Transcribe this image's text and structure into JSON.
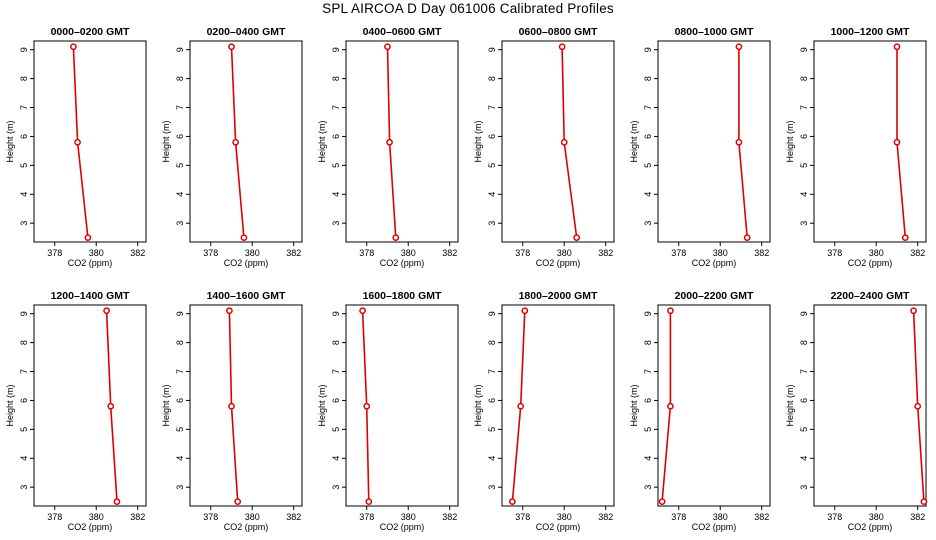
{
  "title": "SPL AIRCOA D  Day 061006  Calibrated Profiles",
  "colors": {
    "series": "#dd0000",
    "axis": "#000000",
    "background": "#ffffff"
  },
  "chart_data": [
    {
      "type": "line",
      "title": "0000–0200 GMT",
      "xlabel": "CO2 (ppm)",
      "ylabel": "Height (m)",
      "xlim": [
        377,
        382.4
      ],
      "ylim": [
        2.35,
        9.3
      ],
      "x_ticks": [
        "378",
        "380",
        "382"
      ],
      "y_ticks": [
        "3",
        "4",
        "5",
        "6",
        "7",
        "8",
        "9"
      ],
      "grid": false,
      "series": [
        {
          "x": [
            378.9,
            379.1,
            379.6
          ],
          "y": [
            9.1,
            5.8,
            2.5
          ]
        }
      ]
    },
    {
      "type": "line",
      "title": "0200–0400 GMT",
      "xlabel": "CO2 (ppm)",
      "ylabel": "Height (m)",
      "xlim": [
        377,
        382.4
      ],
      "ylim": [
        2.35,
        9.3
      ],
      "x_ticks": [
        "378",
        "380",
        "382"
      ],
      "y_ticks": [
        "3",
        "4",
        "5",
        "6",
        "7",
        "8",
        "9"
      ],
      "grid": false,
      "series": [
        {
          "x": [
            379.0,
            379.2,
            379.6
          ],
          "y": [
            9.1,
            5.8,
            2.5
          ]
        }
      ]
    },
    {
      "type": "line",
      "title": "0400–0600 GMT",
      "xlabel": "CO2 (ppm)",
      "ylabel": "Height (m)",
      "xlim": [
        377,
        382.4
      ],
      "ylim": [
        2.35,
        9.3
      ],
      "x_ticks": [
        "378",
        "380",
        "382"
      ],
      "y_ticks": [
        "3",
        "4",
        "5",
        "6",
        "7",
        "8",
        "9"
      ],
      "grid": false,
      "series": [
        {
          "x": [
            379.0,
            379.1,
            379.4
          ],
          "y": [
            9.1,
            5.8,
            2.5
          ]
        }
      ]
    },
    {
      "type": "line",
      "title": "0600–0800 GMT",
      "xlabel": "CO2 (ppm)",
      "ylabel": "Height (m)",
      "xlim": [
        377,
        382.4
      ],
      "ylim": [
        2.35,
        9.3
      ],
      "x_ticks": [
        "378",
        "380",
        "382"
      ],
      "y_ticks": [
        "3",
        "4",
        "5",
        "6",
        "7",
        "8",
        "9"
      ],
      "grid": false,
      "series": [
        {
          "x": [
            379.9,
            380.0,
            380.6
          ],
          "y": [
            9.1,
            5.8,
            2.5
          ]
        }
      ]
    },
    {
      "type": "line",
      "title": "0800–1000 GMT",
      "xlabel": "CO2 (ppm)",
      "ylabel": "Height (m)",
      "xlim": [
        377,
        382.4
      ],
      "ylim": [
        2.35,
        9.3
      ],
      "x_ticks": [
        "378",
        "380",
        "382"
      ],
      "y_ticks": [
        "3",
        "4",
        "5",
        "6",
        "7",
        "8",
        "9"
      ],
      "grid": false,
      "series": [
        {
          "x": [
            380.9,
            380.9,
            381.3
          ],
          "y": [
            9.1,
            5.8,
            2.5
          ]
        }
      ]
    },
    {
      "type": "line",
      "title": "1000–1200 GMT",
      "xlabel": "CO2 (ppm)",
      "ylabel": "Height (m)",
      "xlim": [
        377,
        382.4
      ],
      "ylim": [
        2.35,
        9.3
      ],
      "x_ticks": [
        "378",
        "380",
        "382"
      ],
      "y_ticks": [
        "3",
        "4",
        "5",
        "6",
        "7",
        "8",
        "9"
      ],
      "grid": false,
      "series": [
        {
          "x": [
            381.0,
            381.0,
            381.4
          ],
          "y": [
            9.1,
            5.8,
            2.5
          ]
        }
      ]
    },
    {
      "type": "line",
      "title": "1200–1400 GMT",
      "xlabel": "CO2 (ppm)",
      "ylabel": "Height (m)",
      "xlim": [
        377,
        382.4
      ],
      "ylim": [
        2.35,
        9.3
      ],
      "x_ticks": [
        "378",
        "380",
        "382"
      ],
      "y_ticks": [
        "3",
        "4",
        "5",
        "6",
        "7",
        "8",
        "9"
      ],
      "grid": false,
      "series": [
        {
          "x": [
            380.5,
            380.7,
            381.0
          ],
          "y": [
            9.1,
            5.8,
            2.5
          ]
        }
      ]
    },
    {
      "type": "line",
      "title": "1400–1600 GMT",
      "xlabel": "CO2 (ppm)",
      "ylabel": "Height (m)",
      "xlim": [
        377,
        382.4
      ],
      "ylim": [
        2.35,
        9.3
      ],
      "x_ticks": [
        "378",
        "380",
        "382"
      ],
      "y_ticks": [
        "3",
        "4",
        "5",
        "6",
        "7",
        "8",
        "9"
      ],
      "grid": false,
      "series": [
        {
          "x": [
            378.9,
            379.0,
            379.3
          ],
          "y": [
            9.1,
            5.8,
            2.5
          ]
        }
      ]
    },
    {
      "type": "line",
      "title": "1600–1800 GMT",
      "xlabel": "CO2 (ppm)",
      "ylabel": "Height (m)",
      "xlim": [
        377,
        382.4
      ],
      "ylim": [
        2.35,
        9.3
      ],
      "x_ticks": [
        "378",
        "380",
        "382"
      ],
      "y_ticks": [
        "3",
        "4",
        "5",
        "6",
        "7",
        "8",
        "9"
      ],
      "grid": false,
      "series": [
        {
          "x": [
            377.8,
            378.0,
            378.1
          ],
          "y": [
            9.1,
            5.8,
            2.5
          ]
        }
      ]
    },
    {
      "type": "line",
      "title": "1800–2000 GMT",
      "xlabel": "CO2 (ppm)",
      "ylabel": "Height (m)",
      "xlim": [
        377,
        382.4
      ],
      "ylim": [
        2.35,
        9.3
      ],
      "x_ticks": [
        "378",
        "380",
        "382"
      ],
      "y_ticks": [
        "3",
        "4",
        "5",
        "6",
        "7",
        "8",
        "9"
      ],
      "grid": false,
      "series": [
        {
          "x": [
            378.1,
            377.9,
            377.5
          ],
          "y": [
            9.1,
            5.8,
            2.5
          ]
        }
      ]
    },
    {
      "type": "line",
      "title": "2000–2200 GMT",
      "xlabel": "CO2 (ppm)",
      "ylabel": "Height (m)",
      "xlim": [
        377,
        382.4
      ],
      "ylim": [
        2.35,
        9.3
      ],
      "x_ticks": [
        "378",
        "380",
        "382"
      ],
      "y_ticks": [
        "3",
        "4",
        "5",
        "6",
        "7",
        "8",
        "9"
      ],
      "grid": false,
      "series": [
        {
          "x": [
            377.6,
            377.6,
            377.2
          ],
          "y": [
            9.1,
            5.8,
            2.5
          ]
        }
      ]
    },
    {
      "type": "line",
      "title": "2200–2400 GMT",
      "xlabel": "CO2 (ppm)",
      "ylabel": "Height (m)",
      "xlim": [
        377,
        382.4
      ],
      "ylim": [
        2.35,
        9.3
      ],
      "x_ticks": [
        "378",
        "380",
        "382"
      ],
      "y_ticks": [
        "3",
        "4",
        "5",
        "6",
        "7",
        "8",
        "9"
      ],
      "grid": false,
      "series": [
        {
          "x": [
            381.8,
            382.0,
            382.3
          ],
          "y": [
            9.1,
            5.8,
            2.5
          ]
        }
      ]
    }
  ]
}
